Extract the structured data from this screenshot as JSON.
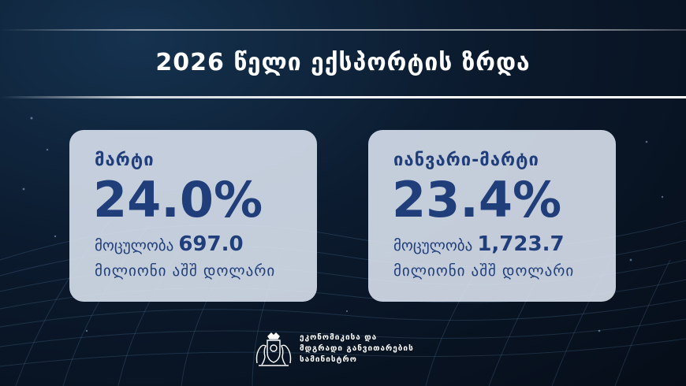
{
  "title": "2026 წელი ექსპორტის ზრდა",
  "cards": [
    {
      "label": "მარტი",
      "percent": "24.0%",
      "volume_label": "მოცულობა",
      "volume_value": "697.0",
      "unit": "მილიონი აშშ დოლარი"
    },
    {
      "label": "იანვარი-მარტი",
      "percent": "23.4%",
      "volume_label": "მოცულობა",
      "volume_value": "1,723.7",
      "unit": "მილიონი აშშ დოლარი"
    }
  ],
  "ministry": {
    "line1": "ეკონომიკისა და",
    "line2": "მდგრადი განვითარების",
    "line3": "სამინისტრო"
  },
  "colors": {
    "background": "#0b1a2d",
    "card_background": "#dee6f2",
    "card_text": "#1f3e7a",
    "title_text": "#ffffff"
  },
  "icons": {
    "logo": "georgia-coat-of-arms-icon"
  }
}
